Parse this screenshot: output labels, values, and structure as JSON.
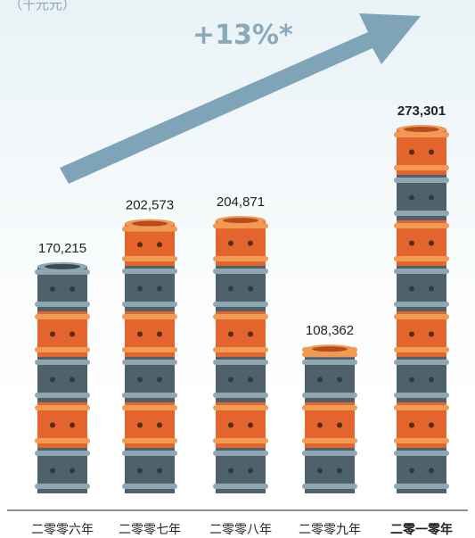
{
  "unit_label": "（千元元）",
  "growth_label": "+13%*",
  "colors": {
    "orange": "#e3642d",
    "orange_ring": "#f09a54",
    "slate": "#4f626c",
    "slate_ring": "#8fa7b3",
    "arrow": "#7fa3b7",
    "value_text": "#222222",
    "axis": "#222222"
  },
  "chart_data": {
    "type": "bar",
    "title": "",
    "xlabel": "",
    "ylabel": "",
    "categories": [
      "二零零六年",
      "二零零七年",
      "二零零八年",
      "二零零九年",
      "二零一零年"
    ],
    "values": [
      170215,
      202573,
      204871,
      108362,
      273301
    ],
    "value_labels": [
      "170,215",
      "202,573",
      "204,871",
      "108,362",
      "273,301"
    ],
    "highlight_index": 4,
    "ylim": [
      0,
      273301
    ],
    "grid": false,
    "legend": "none",
    "annotation": "+13%*"
  }
}
